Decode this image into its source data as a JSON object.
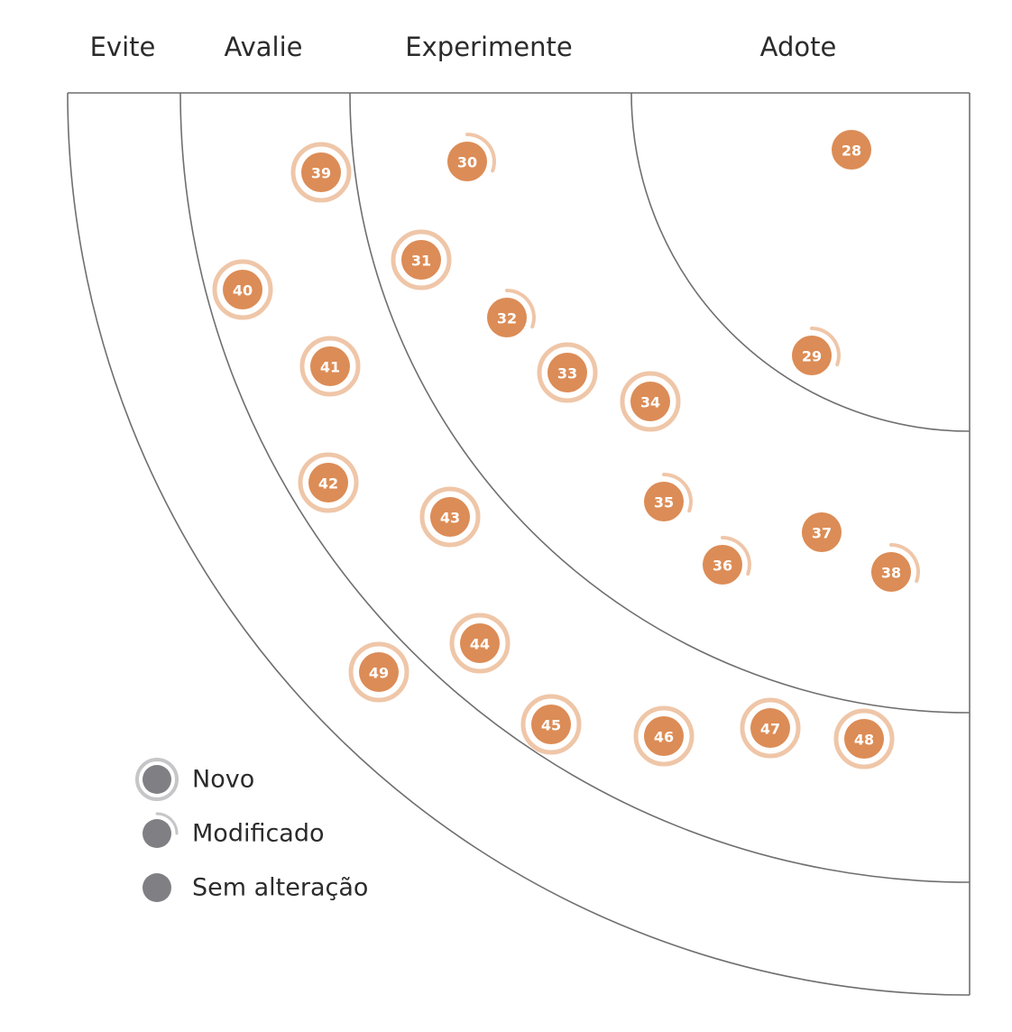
{
  "rings": [
    {
      "id": "evite",
      "label": "Evite"
    },
    {
      "id": "avalie",
      "label": "Avalie"
    },
    {
      "id": "experimente",
      "label": "Experimente"
    },
    {
      "id": "adote",
      "label": "Adote"
    }
  ],
  "legend": {
    "new_label": "Novo",
    "moved_label": "Modificado",
    "unchanged_label": "Sem alteração"
  },
  "colors": {
    "blip": "#dc8c56",
    "blip_halo": "#efc6a8",
    "legend_dot": "#808084",
    "legend_halo": "#c6c6c8",
    "ring_line": "#6f6f6f",
    "label_text": "#2b2b2b"
  },
  "blips": [
    {
      "id": "28",
      "ring": "adote",
      "status": "unchanged"
    },
    {
      "id": "29",
      "ring": "adote",
      "status": "moved"
    },
    {
      "id": "30",
      "ring": "experimente",
      "status": "moved"
    },
    {
      "id": "31",
      "ring": "experimente",
      "status": "new"
    },
    {
      "id": "32",
      "ring": "experimente",
      "status": "moved"
    },
    {
      "id": "33",
      "ring": "experimente",
      "status": "new"
    },
    {
      "id": "34",
      "ring": "experimente",
      "status": "new"
    },
    {
      "id": "35",
      "ring": "experimente",
      "status": "moved"
    },
    {
      "id": "36",
      "ring": "experimente",
      "status": "moved"
    },
    {
      "id": "37",
      "ring": "experimente",
      "status": "unchanged"
    },
    {
      "id": "38",
      "ring": "experimente",
      "status": "moved"
    },
    {
      "id": "39",
      "ring": "avalie",
      "status": "new"
    },
    {
      "id": "40",
      "ring": "avalie",
      "status": "new"
    },
    {
      "id": "41",
      "ring": "avalie",
      "status": "new"
    },
    {
      "id": "42",
      "ring": "avalie",
      "status": "new"
    },
    {
      "id": "43",
      "ring": "avalie",
      "status": "new"
    },
    {
      "id": "44",
      "ring": "avalie",
      "status": "new"
    },
    {
      "id": "45",
      "ring": "avalie",
      "status": "new"
    },
    {
      "id": "46",
      "ring": "avalie",
      "status": "new"
    },
    {
      "id": "47",
      "ring": "avalie",
      "status": "new"
    },
    {
      "id": "48",
      "ring": "avalie",
      "status": "new"
    },
    {
      "id": "49",
      "ring": "evite",
      "status": "new"
    }
  ]
}
